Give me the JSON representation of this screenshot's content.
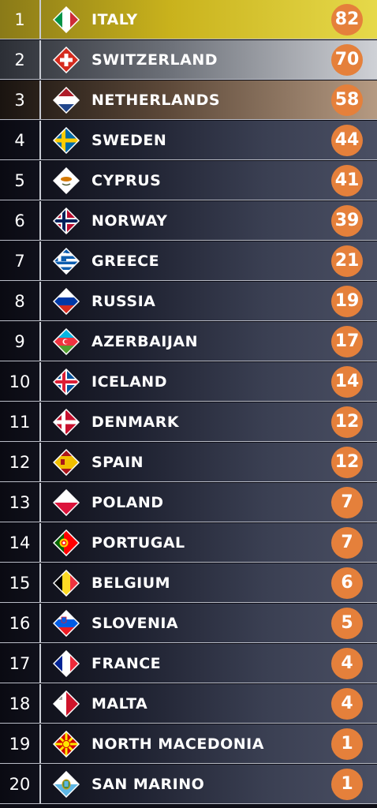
{
  "rows": [
    {
      "rank": "1",
      "country": "ITALY",
      "score": "82",
      "flag": "italy-flag-icon"
    },
    {
      "rank": "2",
      "country": "SWITZERLAND",
      "score": "70",
      "flag": "switzerland-flag-icon"
    },
    {
      "rank": "3",
      "country": "NETHERLANDS",
      "score": "58",
      "flag": "netherlands-flag-icon"
    },
    {
      "rank": "4",
      "country": "SWEDEN",
      "score": "44",
      "flag": "sweden-flag-icon"
    },
    {
      "rank": "5",
      "country": "CYPRUS",
      "score": "41",
      "flag": "cyprus-flag-icon"
    },
    {
      "rank": "6",
      "country": "NORWAY",
      "score": "39",
      "flag": "norway-flag-icon"
    },
    {
      "rank": "7",
      "country": "GREECE",
      "score": "21",
      "flag": "greece-flag-icon"
    },
    {
      "rank": "8",
      "country": "RUSSIA",
      "score": "19",
      "flag": "russia-flag-icon"
    },
    {
      "rank": "9",
      "country": "AZERBAIJAN",
      "score": "17",
      "flag": "azerbaijan-flag-icon"
    },
    {
      "rank": "10",
      "country": "ICELAND",
      "score": "14",
      "flag": "iceland-flag-icon"
    },
    {
      "rank": "11",
      "country": "DENMARK",
      "score": "12",
      "flag": "denmark-flag-icon"
    },
    {
      "rank": "12",
      "country": "SPAIN",
      "score": "12",
      "flag": "spain-flag-icon"
    },
    {
      "rank": "13",
      "country": "POLAND",
      "score": "7",
      "flag": "poland-flag-icon"
    },
    {
      "rank": "14",
      "country": "PORTUGAL",
      "score": "7",
      "flag": "portugal-flag-icon"
    },
    {
      "rank": "15",
      "country": "BELGIUM",
      "score": "6",
      "flag": "belgium-flag-icon"
    },
    {
      "rank": "16",
      "country": "SLOVENIA",
      "score": "5",
      "flag": "slovenia-flag-icon"
    },
    {
      "rank": "17",
      "country": "FRANCE",
      "score": "4",
      "flag": "france-flag-icon"
    },
    {
      "rank": "18",
      "country": "MALTA",
      "score": "4",
      "flag": "malta-flag-icon"
    },
    {
      "rank": "19",
      "country": "NORTH MACEDONIA",
      "score": "1",
      "flag": "north-macedonia-flag-icon"
    },
    {
      "rank": "20",
      "country": "SAN MARINO",
      "score": "1",
      "flag": "san-marino-flag-icon"
    }
  ],
  "colors": {
    "score_badge": "#e5803b",
    "gold": "#e6d94a",
    "silver": "#cfd1d6",
    "bronze": "#b59a82"
  }
}
